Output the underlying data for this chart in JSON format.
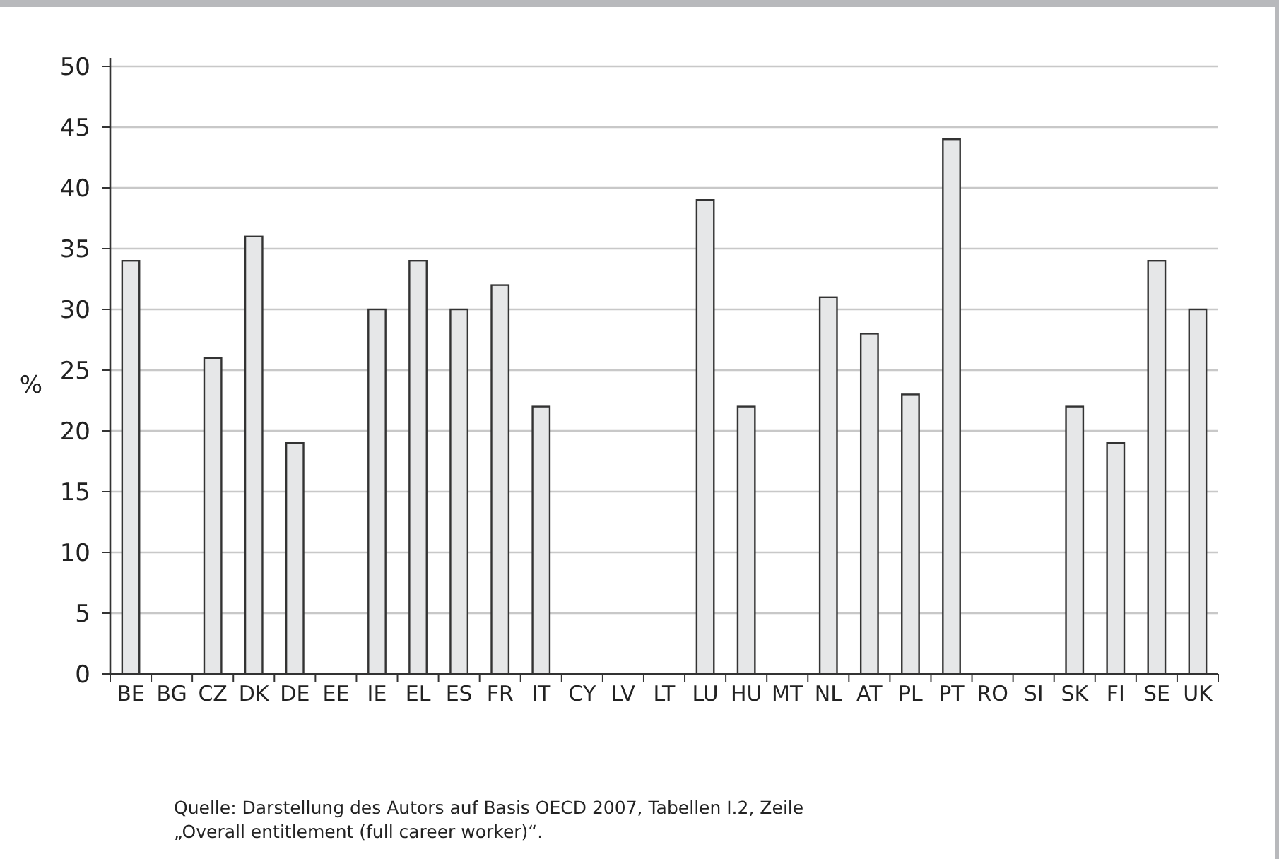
{
  "chart_data": {
    "type": "bar",
    "ylabel": "%",
    "categories": [
      "BE",
      "BG",
      "CZ",
      "DK",
      "DE",
      "EE",
      "IE",
      "EL",
      "ES",
      "FR",
      "IT",
      "CY",
      "LV",
      "LT",
      "LU",
      "HU",
      "MT",
      "NL",
      "AT",
      "PL",
      "PT",
      "RO",
      "SI",
      "SK",
      "FI",
      "SE",
      "UK"
    ],
    "values": [
      34,
      null,
      26,
      36,
      19,
      null,
      30,
      34,
      30,
      32,
      22,
      null,
      null,
      null,
      39,
      22,
      null,
      31,
      28,
      23,
      44,
      null,
      null,
      22,
      19,
      34,
      30
    ],
    "color": "#e6e7e8",
    "ylim": [
      0,
      50
    ],
    "yticks": [
      0,
      5,
      10,
      15,
      20,
      25,
      30,
      35,
      40,
      45,
      50
    ],
    "grid": "y",
    "annotations": [
      "Quelle: Darstellung des Autors auf Basis OECD 2007, Tabellen I.2, Zeile „Overall entitlement (full career worker)“."
    ]
  }
}
